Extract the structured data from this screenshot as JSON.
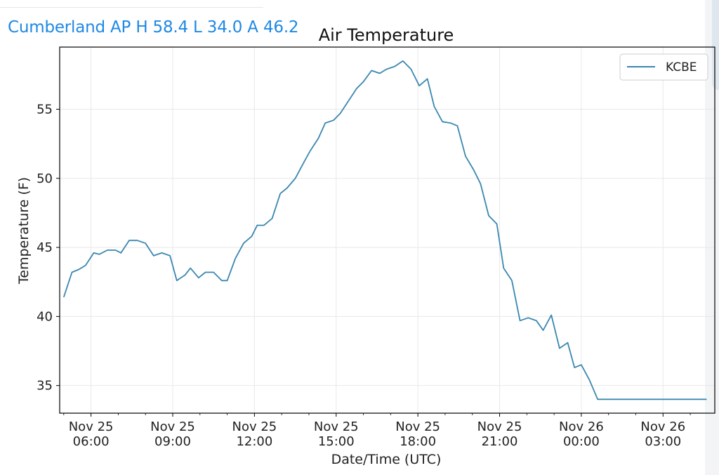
{
  "header": {
    "station_summary": "Cumberland AP H 58.4 L 34.0 A 46.2"
  },
  "colors": {
    "header_text": "#1e88e5",
    "series_line": "#3a87b0",
    "grid": "#e8e8e8"
  },
  "chart_data": {
    "type": "line",
    "title": "Air Temperature",
    "xlabel": "Date/Time (UTC)",
    "ylabel": "Temperature (F)",
    "x_unit": "hours from Nov 25 00:00 UTC",
    "xlim": [
      4.85,
      28.9
    ],
    "ylim": [
      33.0,
      59.5
    ],
    "yticks": [
      35,
      40,
      45,
      50,
      55
    ],
    "xticks": [
      {
        "at": 6,
        "line1": "Nov 25",
        "line2": "06:00"
      },
      {
        "at": 9,
        "line1": "Nov 25",
        "line2": "09:00"
      },
      {
        "at": 12,
        "line1": "Nov 25",
        "line2": "12:00"
      },
      {
        "at": 15,
        "line1": "Nov 25",
        "line2": "15:00"
      },
      {
        "at": 18,
        "line1": "Nov 25",
        "line2": "18:00"
      },
      {
        "at": 21,
        "line1": "Nov 25",
        "line2": "21:00"
      },
      {
        "at": 24,
        "line1": "Nov 26",
        "line2": "00:00"
      },
      {
        "at": 27,
        "line1": "Nov 26",
        "line2": "03:00"
      }
    ],
    "grid": true,
    "legend_position": "top-right",
    "series": [
      {
        "name": "KCBE",
        "x": [
          5.0,
          5.3,
          5.55,
          5.8,
          6.1,
          6.3,
          6.6,
          6.9,
          7.1,
          7.4,
          7.7,
          8.0,
          8.3,
          8.6,
          8.9,
          9.15,
          9.45,
          9.65,
          9.95,
          10.2,
          10.5,
          10.8,
          11.0,
          11.3,
          11.6,
          11.9,
          12.1,
          12.35,
          12.65,
          12.95,
          13.2,
          13.5,
          13.8,
          14.05,
          14.35,
          14.6,
          14.9,
          15.15,
          15.45,
          15.75,
          16.0,
          16.3,
          16.6,
          16.85,
          17.15,
          17.45,
          17.75,
          18.05,
          18.35,
          18.6,
          18.9,
          19.2,
          19.45,
          19.75,
          20.05,
          20.3,
          20.6,
          20.9,
          21.15,
          21.45,
          21.75,
          22.05,
          22.35,
          22.6,
          22.9,
          23.2,
          23.5,
          23.75,
          24.0,
          24.3,
          24.6,
          24.9,
          25.2,
          25.5,
          25.75,
          26.05,
          26.35,
          26.6,
          26.9,
          27.2,
          27.5,
          27.8,
          28.05,
          28.35,
          28.6
        ],
        "values": [
          41.4,
          43.2,
          43.4,
          43.7,
          44.6,
          44.5,
          44.8,
          44.8,
          44.6,
          45.5,
          45.5,
          45.3,
          44.4,
          44.6,
          44.4,
          42.6,
          43.0,
          43.5,
          42.8,
          43.2,
          43.2,
          42.6,
          42.6,
          44.2,
          45.3,
          45.8,
          46.6,
          46.6,
          47.1,
          48.9,
          49.3,
          50.0,
          51.1,
          52.0,
          52.9,
          54.0,
          54.2,
          54.7,
          55.6,
          56.5,
          57.0,
          57.8,
          57.6,
          57.9,
          58.1,
          58.5,
          57.9,
          56.7,
          57.2,
          55.2,
          54.1,
          54.0,
          53.8,
          51.6,
          50.6,
          49.6,
          47.3,
          46.7,
          43.5,
          42.6,
          39.7,
          39.9,
          39.7,
          39.0,
          40.1,
          37.7,
          38.1,
          36.3,
          36.5,
          35.4,
          34.0,
          34.0,
          34.0,
          34.0,
          34.0,
          34.0,
          34.0,
          34.0,
          34.0,
          34.0,
          34.0,
          34.0,
          34.0,
          34.0,
          34.0
        ]
      }
    ]
  }
}
